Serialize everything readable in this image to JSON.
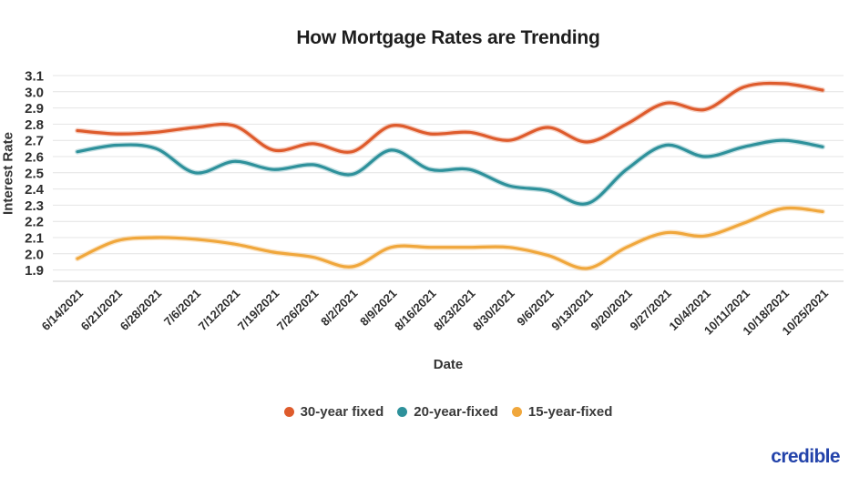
{
  "title": "How Mortgage Rates are Trending",
  "chart_data": {
    "type": "line",
    "title": "How Mortgage Rates are Trending",
    "xlabel": "Date",
    "ylabel": "Interest Rate",
    "ylim": [
      1.9,
      3.1
    ],
    "ytick_step": 0.1,
    "ytick_labels": [
      "3.1",
      "3.0",
      "2.9",
      "2.8",
      "2.7",
      "2.6",
      "2.5",
      "2.4",
      "2.3",
      "2.2",
      "2.1",
      "2.0",
      "1.9"
    ],
    "grid": "horizontal",
    "legend_position": "bottom",
    "categories": [
      "6/14/2021",
      "6/21/2021",
      "6/28/2021",
      "7/6/2021",
      "7/12/2021",
      "7/19/2021",
      "7/26/2021",
      "8/2/2021",
      "8/9/2021",
      "8/16/2021",
      "8/23/2021",
      "8/30/2021",
      "9/6/2021",
      "9/13/2021",
      "9/20/2021",
      "9/27/2021",
      "10/4/2021",
      "10/11/2021",
      "10/18/2021",
      "10/25/2021"
    ],
    "series": [
      {
        "name": "30-year fixed",
        "color": "#DE5B2C",
        "values": [
          2.76,
          2.74,
          2.75,
          2.78,
          2.79,
          2.64,
          2.68,
          2.63,
          2.79,
          2.74,
          2.75,
          2.7,
          2.78,
          2.69,
          2.8,
          2.93,
          2.89,
          3.03,
          3.05,
          3.01
        ]
      },
      {
        "name": "20-year-fixed",
        "color": "#2E919B",
        "values": [
          2.63,
          2.67,
          2.65,
          2.5,
          2.57,
          2.52,
          2.55,
          2.49,
          2.64,
          2.52,
          2.52,
          2.42,
          2.39,
          2.31,
          2.52,
          2.67,
          2.6,
          2.66,
          2.7,
          2.66
        ]
      },
      {
        "name": "15-year-fixed",
        "color": "#F0A73C",
        "values": [
          1.97,
          2.08,
          2.1,
          2.09,
          2.06,
          2.01,
          1.98,
          1.92,
          2.04,
          2.04,
          2.04,
          2.04,
          1.99,
          1.91,
          2.04,
          2.13,
          2.11,
          2.19,
          2.28,
          2.26
        ]
      }
    ],
    "colors": {
      "grid": "#E4E4E4",
      "axis_line": "#D6D6D6",
      "tick_text": "#2E2E2E"
    }
  },
  "branding": {
    "logo_text": "credible",
    "color": "#2343AA"
  }
}
